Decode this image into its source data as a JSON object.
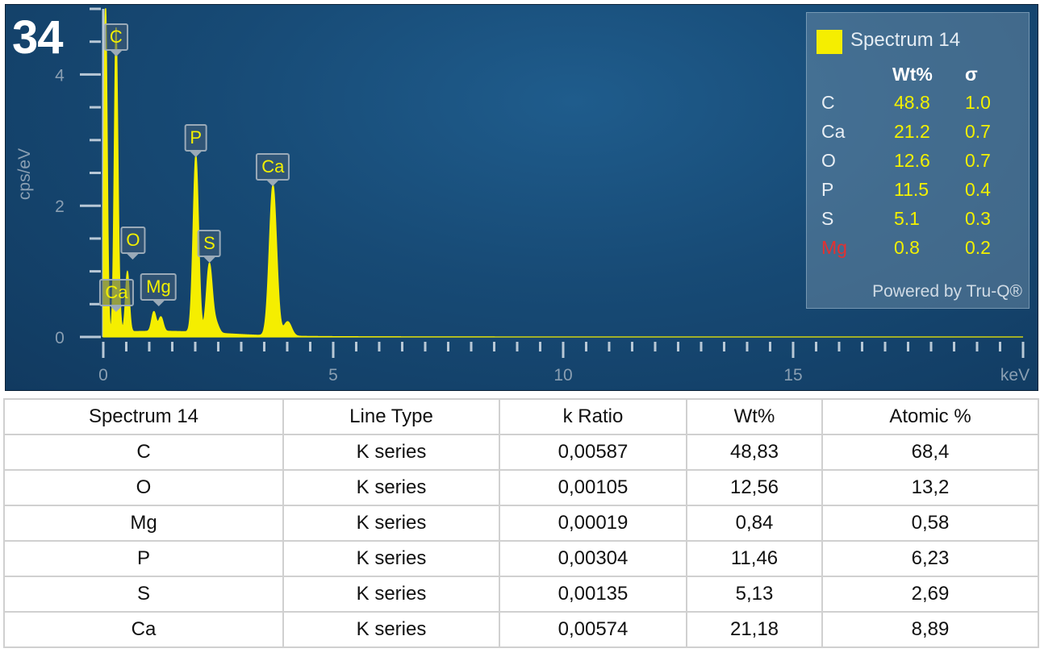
{
  "figure_number": "34",
  "chart_data": {
    "type": "line",
    "xlabel": "keV",
    "ylabel": "cps/eV",
    "xlim": [
      0,
      20
    ],
    "ylim": [
      0,
      5
    ],
    "x_ticks": [
      "0",
      "5",
      "10",
      "15"
    ],
    "y_ticks": [
      "0",
      "2",
      "4"
    ],
    "grid": false,
    "series": [
      {
        "name": "Spectrum 14",
        "color": "#f5ee00",
        "peaks": [
          {
            "label": "C",
            "x": 0.277,
            "y": 4.55
          },
          {
            "label": "O",
            "x": 0.525,
            "y": 0.92
          },
          {
            "label": "Ca",
            "x": 0.341,
            "y": 0.35
          },
          {
            "label": "Mg",
            "x": 1.253,
            "y": 0.22
          },
          {
            "label": "P",
            "x": 2.013,
            "y": 2.7
          },
          {
            "label": "S",
            "x": 2.307,
            "y": 1.05
          },
          {
            "label": "Ca",
            "x": 3.69,
            "y": 2.3
          }
        ],
        "minor_peaks": [
          {
            "x": 0.05,
            "y": 5.0
          },
          {
            "x": 1.1,
            "y": 0.3
          },
          {
            "x": 4.01,
            "y": 0.22
          },
          {
            "x": 2.45,
            "y": 0.15
          }
        ]
      }
    ],
    "legend": {
      "position": "top-right",
      "title": "Spectrum 14",
      "columns": [
        "Wt%",
        "σ"
      ],
      "rows": [
        {
          "element": "C",
          "wt": "48.8",
          "sigma": "1.0",
          "color": "#e8eef4"
        },
        {
          "element": "Ca",
          "wt": "21.2",
          "sigma": "0.7",
          "color": "#e8eef4"
        },
        {
          "element": "O",
          "wt": "12.6",
          "sigma": "0.7",
          "color": "#e8eef4"
        },
        {
          "element": "P",
          "wt": "11.5",
          "sigma": "0.4",
          "color": "#e8eef4"
        },
        {
          "element": "S",
          "wt": "5.1",
          "sigma": "0.3",
          "color": "#e8eef4"
        },
        {
          "element": "Mg",
          "wt": "0.8",
          "sigma": "0.2",
          "color": "#e53030"
        }
      ],
      "footer": "Powered by Tru-Q®"
    }
  },
  "table": {
    "headers": [
      "Spectrum 14",
      "Line Type",
      "k Ratio",
      "Wt%",
      "Atomic %"
    ],
    "rows": [
      [
        "C",
        "K series",
        "0,00587",
        "48,83",
        "68,4"
      ],
      [
        "O",
        "K series",
        "0,00105",
        "12,56",
        "13,2"
      ],
      [
        "Mg",
        "K series",
        "0,00019",
        "0,84",
        "0,58"
      ],
      [
        "P",
        "K series",
        "0,00304",
        "11,46",
        "6,23"
      ],
      [
        "S",
        "K series",
        "0,00135",
        "5,13",
        "2,69"
      ],
      [
        "Ca",
        "K series",
        "0,00574",
        "21,18",
        "8,89"
      ]
    ]
  }
}
